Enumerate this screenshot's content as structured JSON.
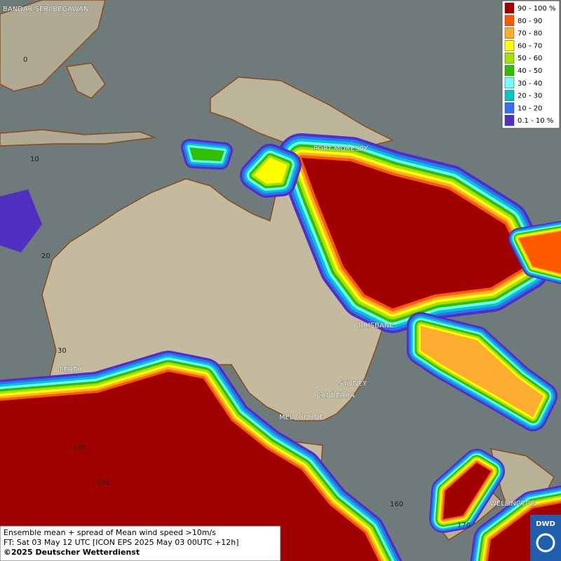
{
  "legend": {
    "items": [
      {
        "label": "90 - 100 %",
        "color": "#a00000"
      },
      {
        "label": "80 - 90",
        "color": "#ff5a00"
      },
      {
        "label": "70 - 80",
        "color": "#ffad30"
      },
      {
        "label": "60 - 70",
        "color": "#ffff00"
      },
      {
        "label": "50 - 60",
        "color": "#a8e000"
      },
      {
        "label": "40 - 50",
        "color": "#30c000"
      },
      {
        "label": "30 - 40",
        "color": "#70ffff"
      },
      {
        "label": "20 - 30",
        "color": "#00c8c8"
      },
      {
        "label": "10 - 20",
        "color": "#3070ff"
      },
      {
        "label": "0.1 - 10 %",
        "color": "#5030c0"
      }
    ]
  },
  "places": [
    "BANDAR SERI BEGAWAN",
    "PORT MORESBY",
    "BRISBANE",
    "SYDNEY",
    "CANBERRA",
    "MELBOURNE",
    "PERTH",
    "WELLINGTON"
  ],
  "grid_labels": [
    "0",
    "10",
    "20",
    "30",
    "140",
    "150",
    "160",
    "170"
  ],
  "footer": {
    "lines": [
      "Ensemble mean + spread of Mean wind speed >10m/s",
      "FT: Sat 03 May 12 UTC [ICON EPS 2025 May 03 00UTC +12h]",
      "©2025 Deutscher Wetterdienst"
    ]
  },
  "logo": "DWD"
}
